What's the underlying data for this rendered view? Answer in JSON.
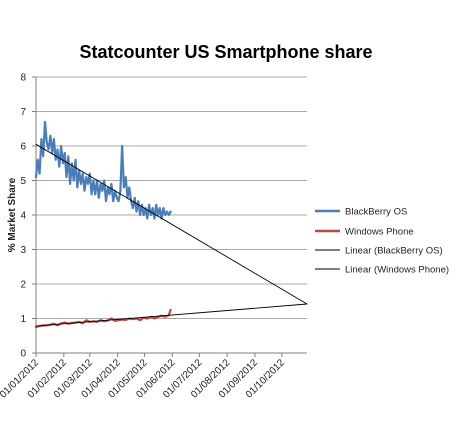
{
  "chart_data": {
    "type": "line",
    "title": "Statcounter US Smartphone share",
    "ylabel": "% Market Share",
    "xlabel": "",
    "ylim": [
      0,
      8
    ],
    "y_ticks": [
      "0",
      "1",
      "2",
      "3",
      "4",
      "5",
      "6",
      "7",
      "8"
    ],
    "x_ticks": [
      "01/01/2012",
      "01/02/2012",
      "01/03/2012",
      "01/04/2012",
      "01/05/2012",
      "01/06/2012",
      "01/07/2012",
      "01/08/2012",
      "01/09/2012",
      "01/10/2012"
    ],
    "xlim": [
      "2012-01-01",
      "2012-10-29"
    ],
    "grid": "horizontal",
    "legend_position": "right",
    "series": [
      {
        "name": "BlackBerry OS",
        "color": "#4a7ebb",
        "kind": "data",
        "x": [
          "2012-01-01",
          "2012-01-03",
          "2012-01-05",
          "2012-01-07",
          "2012-01-09",
          "2012-01-11",
          "2012-01-13",
          "2012-01-15",
          "2012-01-17",
          "2012-01-19",
          "2012-01-21",
          "2012-01-23",
          "2012-01-25",
          "2012-01-27",
          "2012-01-29",
          "2012-01-31",
          "2012-02-02",
          "2012-02-04",
          "2012-02-06",
          "2012-02-08",
          "2012-02-10",
          "2012-02-12",
          "2012-02-14",
          "2012-02-16",
          "2012-02-18",
          "2012-02-20",
          "2012-02-22",
          "2012-02-24",
          "2012-02-26",
          "2012-02-28",
          "2012-03-01",
          "2012-03-03",
          "2012-03-05",
          "2012-03-07",
          "2012-03-09",
          "2012-03-11",
          "2012-03-13",
          "2012-03-15",
          "2012-03-17",
          "2012-03-19",
          "2012-03-21",
          "2012-03-23",
          "2012-03-25",
          "2012-03-27",
          "2012-03-29",
          "2012-03-31",
          "2012-04-02",
          "2012-04-04",
          "2012-04-06",
          "2012-04-08",
          "2012-04-10",
          "2012-04-12",
          "2012-04-14",
          "2012-04-16",
          "2012-04-18",
          "2012-04-20",
          "2012-04-22",
          "2012-04-24",
          "2012-04-26",
          "2012-04-28",
          "2012-04-30",
          "2012-05-02",
          "2012-05-04",
          "2012-05-06",
          "2012-05-08",
          "2012-05-10",
          "2012-05-12",
          "2012-05-14",
          "2012-05-16",
          "2012-05-18",
          "2012-05-20",
          "2012-05-22",
          "2012-05-24",
          "2012-05-26",
          "2012-05-28",
          "2012-05-30"
        ],
        "y": [
          5.1,
          5.6,
          5.2,
          6.2,
          5.7,
          6.7,
          6.1,
          5.9,
          6.3,
          5.8,
          6.2,
          5.6,
          5.9,
          5.4,
          6.0,
          5.5,
          5.8,
          5.1,
          5.7,
          4.9,
          5.5,
          5.0,
          5.6,
          4.8,
          5.3,
          4.9,
          5.2,
          4.7,
          5.1,
          4.9,
          5.2,
          4.6,
          5.0,
          4.6,
          5.0,
          4.5,
          4.9,
          4.7,
          5.0,
          4.4,
          4.8,
          4.6,
          4.9,
          4.4,
          4.7,
          4.5,
          4.4,
          4.7,
          6.0,
          4.8,
          5.1,
          4.5,
          4.8,
          4.4,
          4.2,
          4.5,
          4.1,
          4.4,
          4.0,
          4.3,
          4.0,
          4.2,
          3.9,
          4.3,
          4.0,
          4.2,
          3.9,
          4.3,
          4.0,
          4.2,
          3.9,
          4.2,
          4.0,
          4.1,
          4.0,
          4.1
        ]
      },
      {
        "name": "Windows Phone",
        "color": "#be4b48",
        "kind": "data",
        "x": [
          "2012-01-01",
          "2012-01-05",
          "2012-01-09",
          "2012-01-13",
          "2012-01-17",
          "2012-01-21",
          "2012-01-25",
          "2012-01-29",
          "2012-02-02",
          "2012-02-06",
          "2012-02-10",
          "2012-02-14",
          "2012-02-18",
          "2012-02-22",
          "2012-02-26",
          "2012-03-01",
          "2012-03-05",
          "2012-03-09",
          "2012-03-13",
          "2012-03-17",
          "2012-03-21",
          "2012-03-25",
          "2012-03-29",
          "2012-04-02",
          "2012-04-06",
          "2012-04-10",
          "2012-04-14",
          "2012-04-18",
          "2012-04-22",
          "2012-04-26",
          "2012-04-30",
          "2012-05-04",
          "2012-05-08",
          "2012-05-12",
          "2012-05-16",
          "2012-05-20",
          "2012-05-24",
          "2012-05-28",
          "2012-05-30"
        ],
        "y": [
          0.75,
          0.78,
          0.8,
          0.8,
          0.82,
          0.85,
          0.8,
          0.86,
          0.88,
          0.85,
          0.87,
          0.88,
          0.9,
          0.86,
          0.95,
          0.9,
          0.92,
          0.9,
          0.95,
          0.92,
          0.94,
          1.0,
          0.93,
          0.95,
          0.97,
          0.96,
          1.0,
          0.98,
          1.0,
          0.95,
          1.02,
          1.0,
          1.05,
          1.0,
          1.05,
          1.08,
          1.05,
          1.1,
          1.25
        ]
      },
      {
        "name": "Linear (BlackBerry OS)",
        "color": "#000000",
        "kind": "trend",
        "x": [
          "2012-01-01",
          "2012-10-29"
        ],
        "y": [
          6.05,
          1.42
        ]
      },
      {
        "name": "Linear (Windows Phone)",
        "color": "#000000",
        "kind": "trend",
        "x": [
          "2012-01-01",
          "2012-10-29"
        ],
        "y": [
          0.78,
          1.42
        ]
      }
    ]
  }
}
